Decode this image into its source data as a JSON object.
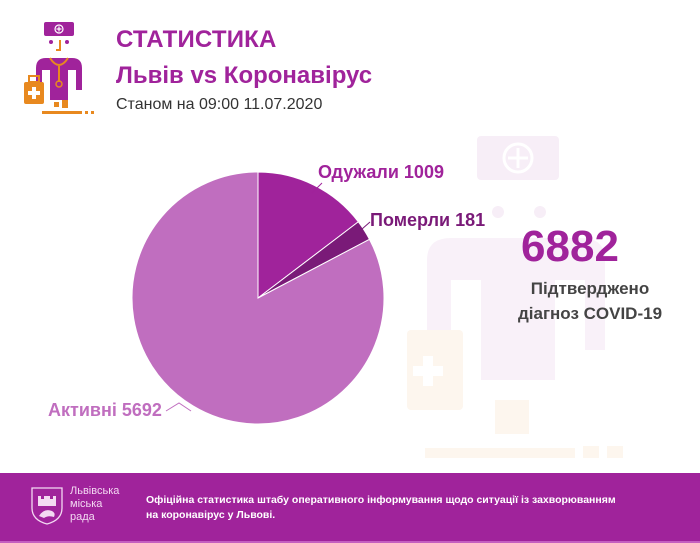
{
  "header": {
    "title": "СТАТИСТИКА",
    "subtitle": "Львів vs Коронавірус",
    "as_of": "Станом на 09:00 11.07.2020",
    "logo_icon": "doctor-icon"
  },
  "summary": {
    "total": "6882",
    "caption_line1": "Підтверджено",
    "caption_line2": "діагноз COVID-19"
  },
  "labels": {
    "recovered": "Одужали 1009",
    "deaths": "Померли 181",
    "active": "Активні 5692"
  },
  "colors": {
    "brand": "#a0239b",
    "recovered": "#a0239b",
    "deaths": "#7a1a78",
    "active": "#c06ebf",
    "accent_orange": "#e8891f"
  },
  "chart_data": {
    "type": "pie",
    "title": "Львів vs Коронавірус",
    "categories": [
      "Одужали",
      "Померли",
      "Активні"
    ],
    "values": [
      1009,
      181,
      5692
    ],
    "total": 6882,
    "colors": [
      "#a0239b",
      "#7a1a78",
      "#c06ebf"
    ],
    "start_angle_deg": 0,
    "direction": "clockwise",
    "legend": "none (inline labels)"
  },
  "footer": {
    "org_line1": "Львівська",
    "org_line2": "міська",
    "org_line3": "рада",
    "text": "Офіційна статистика штабу оперативного інформування щодо ситуації із захворюванням на коронавірус у Львові."
  }
}
